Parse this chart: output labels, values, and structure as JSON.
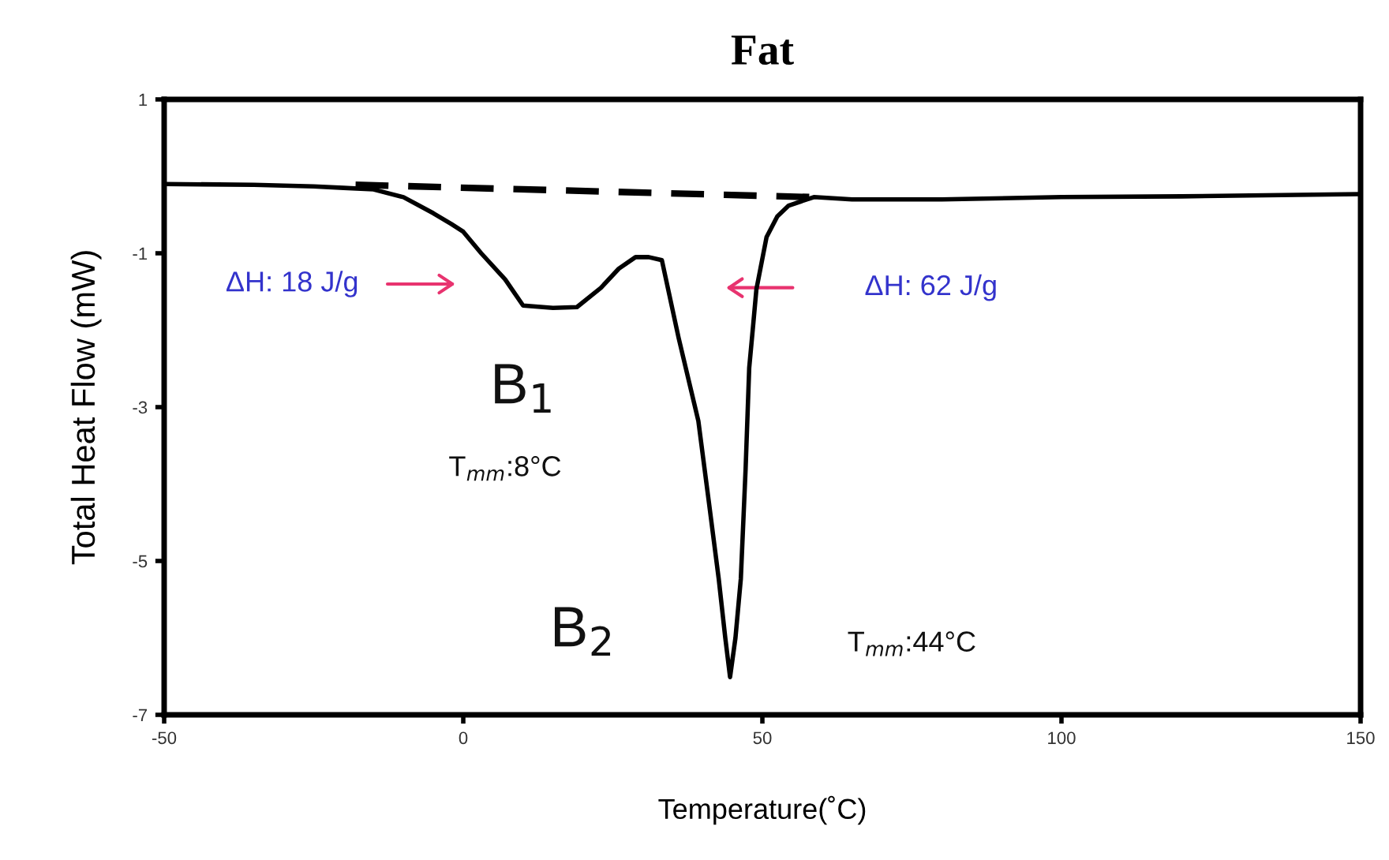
{
  "chart_data": {
    "type": "line",
    "title": "Fat",
    "xlabel": "Temperature(˚C)",
    "ylabel": "Total Heat Flow (mW)",
    "xlim": [
      -50,
      150
    ],
    "xticks": [
      -50,
      0,
      50,
      100,
      150
    ],
    "ylim": [
      -7,
      1
    ],
    "yticks": [
      1,
      -1,
      -3,
      -5,
      -7
    ],
    "grid": false,
    "legend": false,
    "marker": "none",
    "series": [
      {
        "color": "#000000",
        "line_style": "solid",
        "x": [
          -50,
          -35,
          -25,
          -20,
          -15,
          -10,
          -5,
          -2,
          0,
          3,
          7,
          10,
          15,
          19,
          23,
          26,
          28.8,
          31,
          33.2,
          36,
          39.3,
          41,
          42.7,
          43.8,
          44.6,
          45.5,
          46.4,
          47.2,
          47.8,
          48.5,
          49,
          50.7,
          52.5,
          54.4,
          58.6,
          65,
          80,
          100,
          120,
          150
        ],
        "values": [
          -0.1,
          -0.11,
          -0.13,
          -0.15,
          -0.17,
          -0.27,
          -0.48,
          -0.62,
          -0.72,
          -1.0,
          -1.34,
          -1.68,
          -1.71,
          -1.7,
          -1.45,
          -1.2,
          -1.05,
          -1.05,
          -1.09,
          -2.1,
          -3.18,
          -4.2,
          -5.23,
          -6.0,
          -6.51,
          -6.0,
          -5.23,
          -3.8,
          -2.49,
          -1.9,
          -1.47,
          -0.79,
          -0.52,
          -0.38,
          -0.27,
          -0.3,
          -0.3,
          -0.27,
          -0.26,
          -0.23
        ]
      },
      {
        "color": "#000000",
        "line_style": "dashed",
        "x": [
          -18,
          58
        ],
        "values": [
          -0.11,
          -0.27
        ]
      }
    ],
    "annotations": [
      "ΔH: 18 J/g",
      "ΔH: 62 J/g",
      "B$_{1}$",
      "T$_{mm}$:8°C",
      "B$_{2}$",
      "T$_{mm}$:44°C"
    ]
  }
}
